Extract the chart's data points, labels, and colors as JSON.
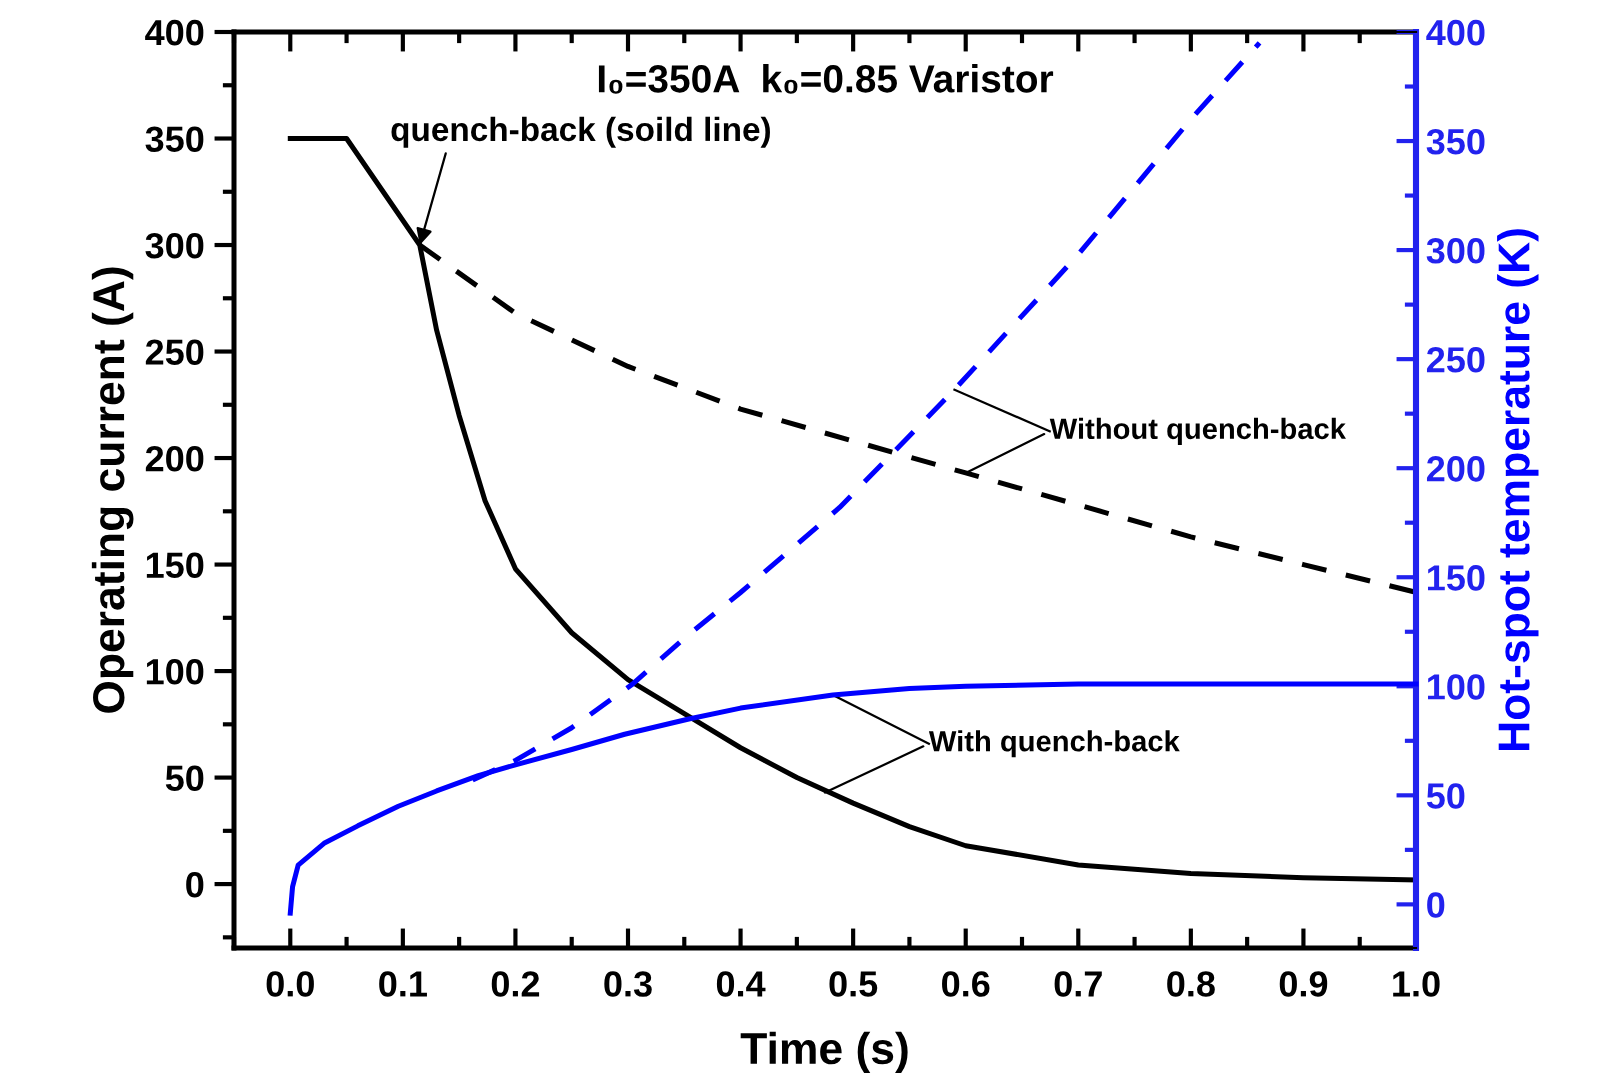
{
  "chart_data": {
    "type": "line",
    "xlabel": "Time (s)",
    "ylabel": "Operating current (A)",
    "y2label": "Hot-spot temperature (K)",
    "xlim": [
      -0.05,
      1.0
    ],
    "xticks": [
      {
        "value": 0,
        "label": "0.0"
      },
      0.1,
      0.2,
      0.3,
      0.4,
      0.5,
      0.6,
      0.7,
      0.8,
      0.9,
      {
        "value": 1,
        "label": "1.0"
      }
    ],
    "ylim": [
      -30,
      400
    ],
    "yticks": [
      0,
      50,
      100,
      150,
      200,
      250,
      300,
      350,
      400
    ],
    "y2lim": [
      -20,
      400
    ],
    "y2ticks": [
      0,
      50,
      100,
      150,
      200,
      250,
      300,
      350,
      400
    ],
    "grid": false,
    "legend": false,
    "marker": "none",
    "annotations": [
      "I₀=350A  k₀=0.85 Varistor",
      {
        "text": "quench-back (soild line)",
        "x": 0.115,
        "y": 300
      },
      {
        "text": "Without quench-back",
        "x": 0.6,
        "y": 193
      },
      {
        "text": "With quench-back",
        "x": 0.475,
        "y": 43
      }
    ],
    "series": [
      {
        "color": "#000000",
        "line_style": "solid",
        "x": [
          0.0,
          0.05,
          0.115,
          0.13,
          0.15,
          0.173,
          0.2,
          0.25,
          0.3,
          0.35,
          0.4,
          0.45,
          0.5,
          0.55,
          0.6,
          0.7,
          0.8,
          0.9,
          1.0
        ],
        "values": [
          350,
          350,
          300,
          260,
          220,
          180,
          148,
          118,
          96,
          80,
          64,
          50,
          38,
          27,
          18,
          9,
          5,
          3,
          2
        ]
      },
      {
        "color": "#000000",
        "line_style": "dashed",
        "x": [
          0.115,
          0.2,
          0.3,
          0.4,
          0.5,
          0.6,
          0.7,
          0.8,
          0.9,
          1.0
        ],
        "values": [
          300,
          268,
          243,
          223,
          208,
          193,
          178,
          163,
          150,
          137
        ]
      },
      {
        "color": "#0000ff",
        "line_style": "solid",
        "axis": "y2",
        "x": [
          0.0,
          0.002,
          0.007,
          0.03,
          0.06,
          0.096,
          0.13,
          0.167,
          0.2,
          0.25,
          0.297,
          0.354,
          0.4,
          0.482,
          0.55,
          0.6,
          0.7,
          0.8,
          0.9,
          1.0
        ],
        "values": [
          -4,
          8,
          18,
          28,
          36,
          45,
          52,
          59,
          64,
          71,
          78,
          85,
          90,
          96,
          99,
          100,
          101,
          101,
          101,
          101
        ]
      },
      {
        "color": "#0000ff",
        "line_style": "dashed",
        "axis": "y2",
        "x": [
          0.162,
          0.2,
          0.25,
          0.304,
          0.35,
          0.4,
          0.45,
          0.488,
          0.59,
          0.7,
          0.8,
          0.861
        ],
        "values": [
          57,
          66,
          81,
          101,
          122,
          143,
          165,
          182,
          236,
          298,
          360,
          395
        ]
      }
    ]
  }
}
